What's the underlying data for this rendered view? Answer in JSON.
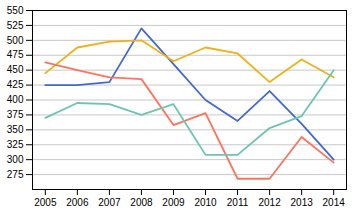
{
  "chart_data": {
    "type": "line",
    "x": [
      2005,
      2006,
      2007,
      2008,
      2009,
      2010,
      2011,
      2012,
      2013,
      2014
    ],
    "series": [
      {
        "values": [
          425,
          425,
          430,
          520,
          460,
          400,
          365,
          415,
          360,
          300
        ]
      },
      {
        "values": [
          445,
          488,
          498,
          500,
          465,
          488,
          478,
          430,
          468,
          438
        ]
      },
      {
        "values": [
          463,
          450,
          438,
          435,
          358,
          378,
          268,
          268,
          338,
          295
        ]
      },
      {
        "values": [
          370,
          395,
          393,
          375,
          393,
          308,
          308,
          353,
          373,
          450
        ]
      }
    ],
    "xlim": [
      2004.6,
      2014.4
    ],
    "xticks": [
      2005,
      2006,
      2007,
      2008,
      2009,
      2010,
      2011,
      2012,
      2013,
      2014
    ],
    "ylim": [
      250,
      550
    ],
    "yticks": [
      275,
      300,
      325,
      350,
      375,
      400,
      425,
      450,
      475,
      500,
      525,
      550
    ],
    "grid": "y"
  }
}
